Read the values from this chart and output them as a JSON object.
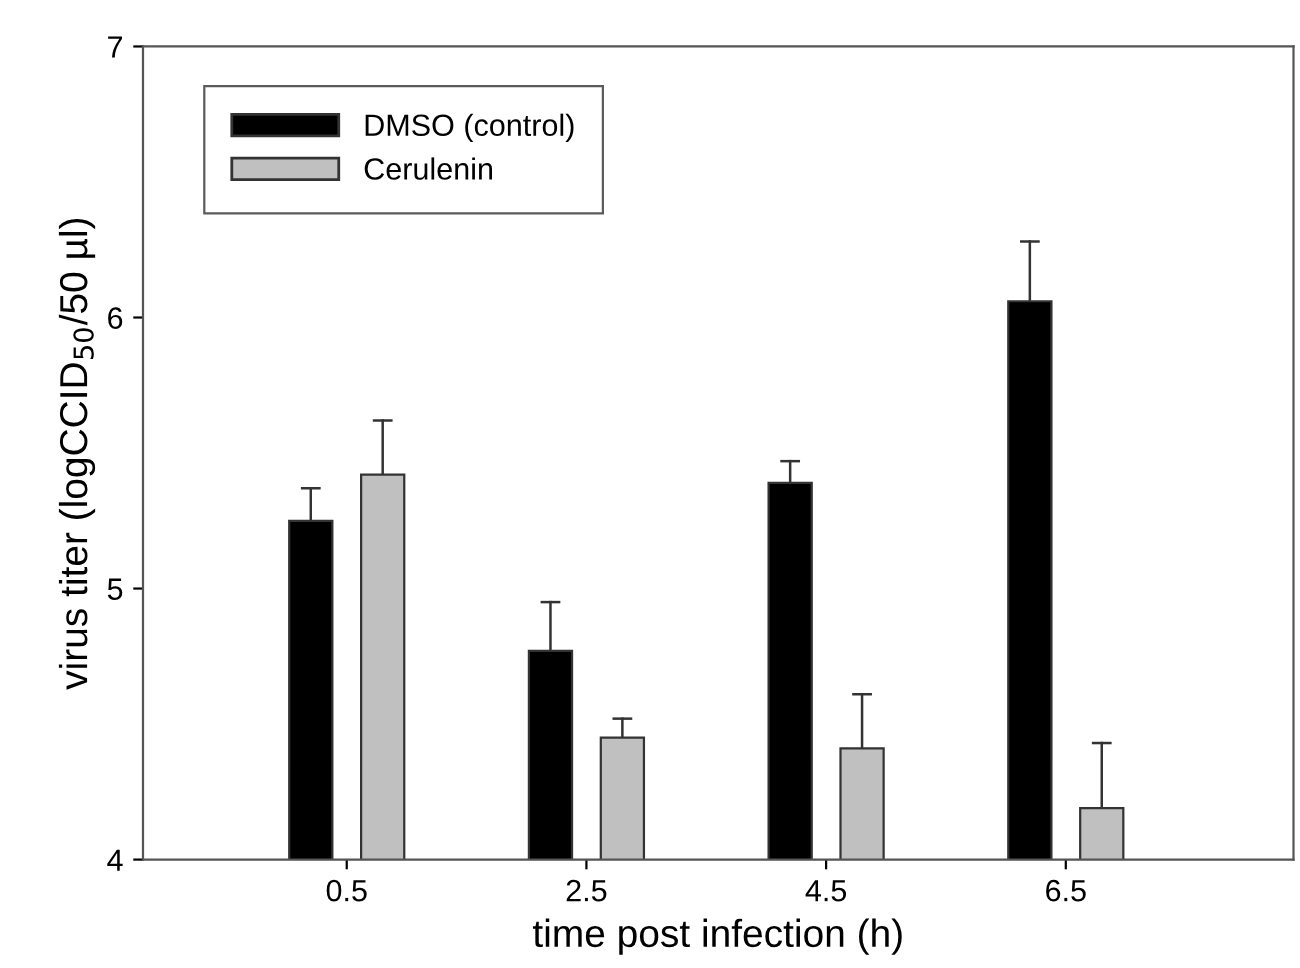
{
  "chart_data": {
    "type": "bar",
    "xlabel": "time post infection (h)",
    "ylabel": "virus titer (logCCID$_{50}$/50 µl)",
    "categories": [
      "0.5",
      "2.5",
      "4.5",
      "6.5"
    ],
    "series": [
      {
        "name": "DMSO (control)",
        "color": "#000000",
        "values": [
          5.25,
          4.77,
          5.39,
          6.06
        ],
        "errors": [
          [
            5.25,
            5.37
          ],
          [
            4.77,
            4.95
          ],
          [
            5.39,
            5.47
          ],
          [
            6.06,
            6.28
          ]
        ]
      },
      {
        "name": "Cerulenin",
        "color": "#c0c0c0",
        "values": [
          5.42,
          4.45,
          4.41,
          4.19
        ],
        "errors": [
          [
            5.42,
            5.62
          ],
          [
            4.45,
            4.52
          ],
          [
            4.41,
            4.61
          ],
          [
            4.19,
            4.43
          ]
        ]
      }
    ],
    "ylim": [
      4,
      7
    ],
    "yticks": [
      4,
      5,
      6,
      7
    ],
    "grid": false,
    "legend": "top left"
  }
}
